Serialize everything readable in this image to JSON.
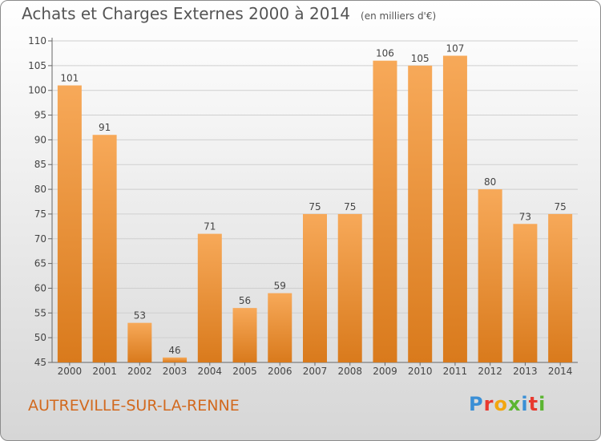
{
  "header": {
    "title": "Achats et Charges Externes 2000 à 2014",
    "unit": "(en milliers d'€)"
  },
  "footer": {
    "place": "AUTREVILLE-SUR-LA-RENNE",
    "logo": "Proxiti"
  },
  "colors": {
    "bar_light": "#f7a959",
    "bar_dark": "#d97a1c",
    "place_text": "#d2691e"
  },
  "chart_data": {
    "type": "bar",
    "categories": [
      "2000",
      "2001",
      "2002",
      "2003",
      "2004",
      "2005",
      "2006",
      "2007",
      "2008",
      "2009",
      "2010",
      "2011",
      "2012",
      "2013",
      "2014"
    ],
    "values": [
      101,
      91,
      53,
      46,
      71,
      56,
      59,
      75,
      75,
      106,
      105,
      107,
      80,
      73,
      75
    ],
    "ylim": [
      45,
      110
    ],
    "yticks": [
      45,
      50,
      55,
      60,
      65,
      70,
      75,
      80,
      85,
      90,
      95,
      100,
      105,
      110
    ],
    "grid": true,
    "data_labels": true
  }
}
